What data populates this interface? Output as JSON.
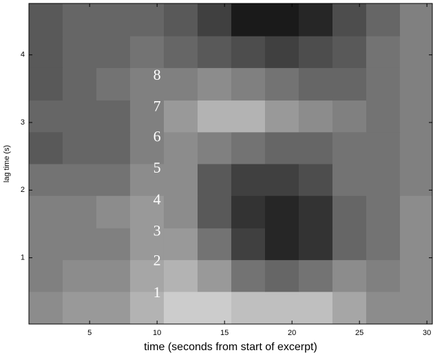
{
  "chart_data": {
    "type": "heatmap",
    "xlabel": "time (seconds from start of excerpt)",
    "ylabel": "lag time (s)",
    "xlim": [
      0.5,
      30.4
    ],
    "ylim": [
      0.02,
      4.76
    ],
    "xticks": [
      5,
      10,
      15,
      20,
      25,
      30
    ],
    "yticks": [
      1,
      2,
      3,
      4
    ],
    "xbins": [
      0.5,
      3,
      5.5,
      8,
      10.5,
      13,
      15.5,
      18,
      20.5,
      23,
      25.5,
      28,
      30.4
    ],
    "ybins": [
      0.02,
      0.5,
      0.97,
      1.44,
      1.92,
      2.39,
      2.86,
      3.33,
      3.81,
      4.28,
      4.76
    ],
    "z": [
      [
        0.55,
        0.6,
        0.6,
        0.7,
        0.8,
        0.8,
        0.75,
        0.75,
        0.75,
        0.65,
        0.55,
        0.55
      ],
      [
        0.5,
        0.55,
        0.55,
        0.65,
        0.7,
        0.6,
        0.45,
        0.4,
        0.45,
        0.55,
        0.5,
        0.55
      ],
      [
        0.5,
        0.5,
        0.5,
        0.6,
        0.6,
        0.45,
        0.25,
        0.15,
        0.2,
        0.4,
        0.45,
        0.55
      ],
      [
        0.5,
        0.5,
        0.55,
        0.6,
        0.55,
        0.35,
        0.2,
        0.15,
        0.2,
        0.4,
        0.45,
        0.55
      ],
      [
        0.45,
        0.45,
        0.45,
        0.55,
        0.55,
        0.35,
        0.25,
        0.25,
        0.3,
        0.45,
        0.45,
        0.5
      ],
      [
        0.35,
        0.4,
        0.4,
        0.5,
        0.55,
        0.5,
        0.45,
        0.4,
        0.4,
        0.45,
        0.45,
        0.5
      ],
      [
        0.4,
        0.4,
        0.4,
        0.5,
        0.6,
        0.7,
        0.7,
        0.6,
        0.55,
        0.5,
        0.45,
        0.5
      ],
      [
        0.35,
        0.4,
        0.45,
        0.5,
        0.5,
        0.55,
        0.5,
        0.45,
        0.4,
        0.4,
        0.45,
        0.5
      ],
      [
        0.35,
        0.4,
        0.4,
        0.45,
        0.4,
        0.35,
        0.3,
        0.25,
        0.3,
        0.35,
        0.45,
        0.5
      ],
      [
        0.35,
        0.4,
        0.4,
        0.4,
        0.35,
        0.25,
        0.1,
        0.1,
        0.15,
        0.3,
        0.4,
        0.5
      ]
    ],
    "annotations": [
      {
        "text": "1",
        "x": 10,
        "y": 0.47
      },
      {
        "text": "2",
        "x": 10,
        "y": 0.94
      },
      {
        "text": "3",
        "x": 10,
        "y": 1.38
      },
      {
        "text": "4",
        "x": 10,
        "y": 1.84
      },
      {
        "text": "5",
        "x": 10,
        "y": 2.31
      },
      {
        "text": "6",
        "x": 10,
        "y": 2.77
      },
      {
        "text": "7",
        "x": 10,
        "y": 3.22
      },
      {
        "text": "8",
        "x": 10,
        "y": 3.68
      }
    ]
  }
}
